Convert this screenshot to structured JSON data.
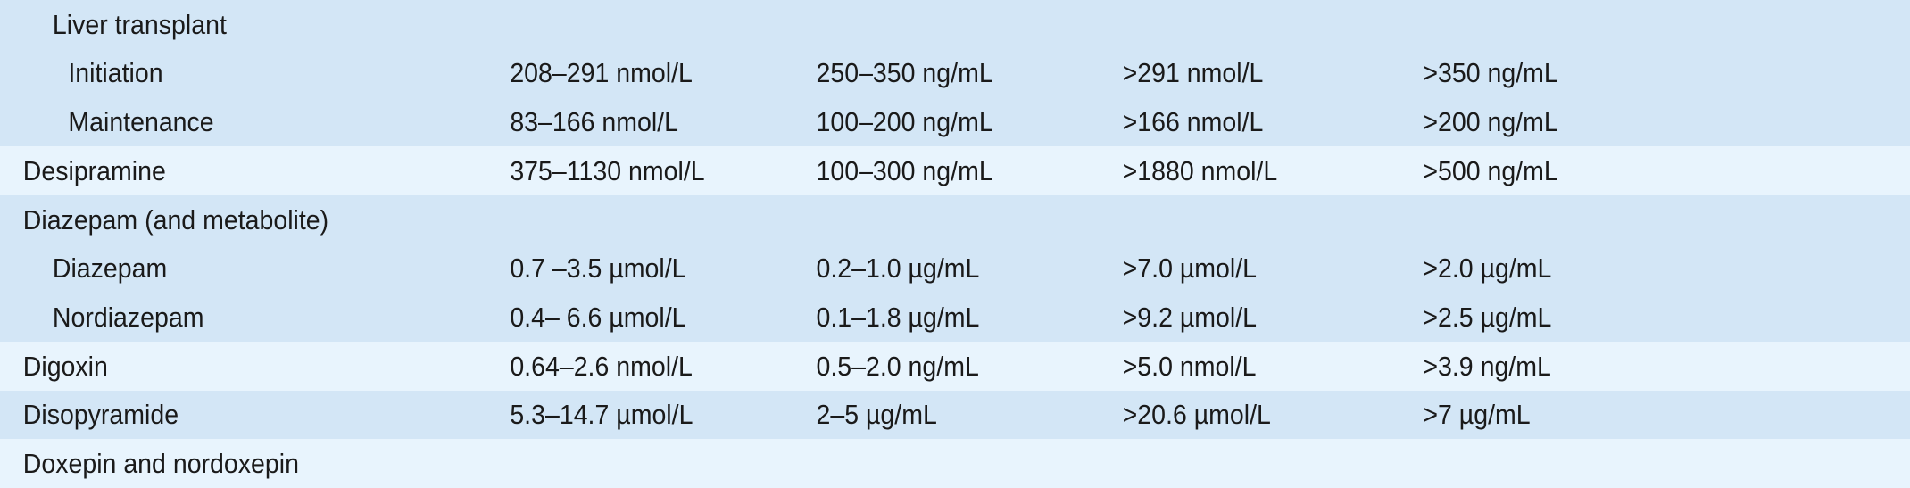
{
  "rows": [
    {
      "label": "Liver transplant",
      "level": 1,
      "bg": "dark",
      "h": 55,
      "c1": "",
      "c2": "",
      "c3": "",
      "c4": ""
    },
    {
      "label": "Initiation",
      "level": 2,
      "bg": "dark",
      "h": 54,
      "c1": "208–291 nmol/L",
      "c2": "250–350 ng/mL",
      "c3": ">291 nmol/L",
      "c4": ">350 ng/mL"
    },
    {
      "label": "Maintenance",
      "level": 2,
      "bg": "dark",
      "h": 55,
      "c1": "83–166 nmol/L",
      "c2": "100–200 ng/mL",
      "c3": ">166 nmol/L",
      "c4": ">200 ng/mL"
    },
    {
      "label": "Desipramine",
      "level": 0,
      "bg": "light",
      "h": 55,
      "c1": "375–1130 nmol/L",
      "c2": "100–300 ng/mL",
      "c3": ">1880 nmol/L",
      "c4": ">500 ng/mL"
    },
    {
      "label": "Diazepam (and metabolite)",
      "level": 0,
      "bg": "dark",
      "h": 55,
      "c1": "",
      "c2": "",
      "c3": "",
      "c4": ""
    },
    {
      "label": "Diazepam",
      "level": 1,
      "bg": "dark",
      "h": 54,
      "c1": "0.7 –3.5 µmol/L",
      "c2": "0.2–1.0 µg/mL",
      "c3": ">7.0 µmol/L",
      "c4": ">2.0 µg/mL"
    },
    {
      "label": "Nordiazepam",
      "level": 1,
      "bg": "dark",
      "h": 55,
      "c1": "0.4– 6.6 µmol/L",
      "c2": "0.1–1.8 µg/mL",
      "c3": ">9.2 µmol/L",
      "c4": ">2.5 µg/mL"
    },
    {
      "label": "Digoxin",
      "level": 0,
      "bg": "light",
      "h": 55,
      "c1": "0.64–2.6 nmol/L",
      "c2": "0.5–2.0 ng/mL",
      "c3": ">5.0 nmol/L",
      "c4": ">3.9 ng/mL"
    },
    {
      "label": "Disopyramide",
      "level": 0,
      "bg": "dark",
      "h": 54,
      "c1": "5.3–14.7 µmol/L",
      "c2": "2–5 µg/mL",
      "c3": ">20.6 µmol/L",
      "c4": ">7 µg/mL"
    },
    {
      "label": "Doxepin and nordoxepin",
      "level": 0,
      "bg": "light",
      "h": 55,
      "c1": "",
      "c2": "",
      "c3": "",
      "c4": ""
    }
  ]
}
